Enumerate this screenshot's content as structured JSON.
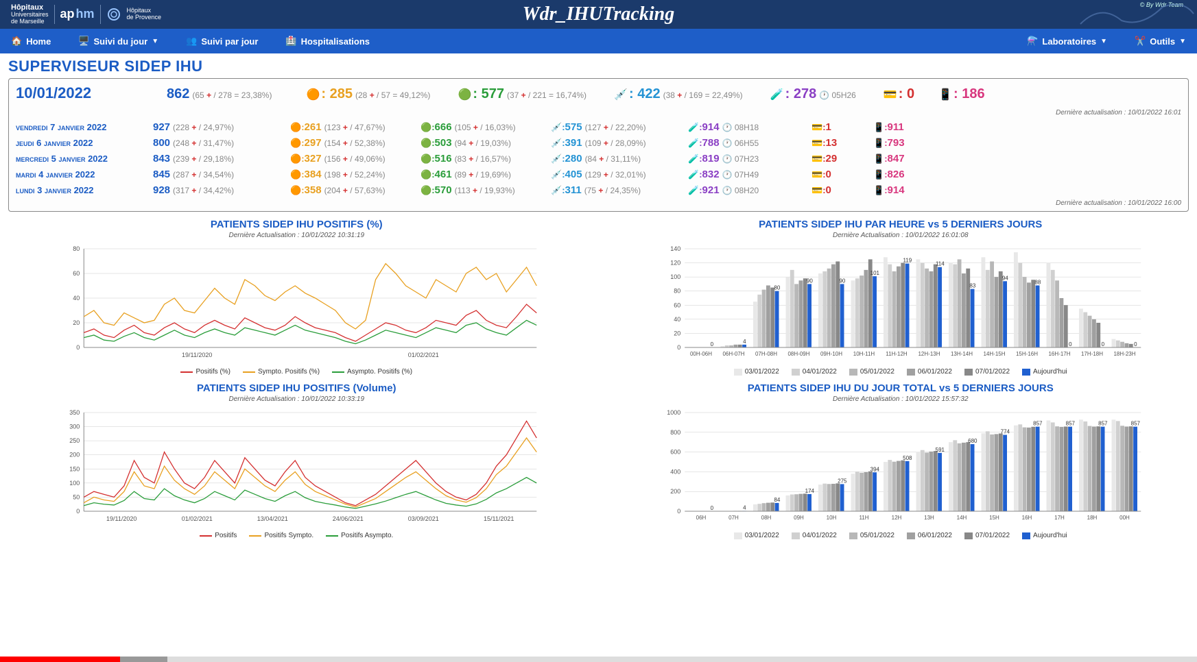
{
  "header": {
    "org1": "Hôpitaux",
    "org1b": "Universitaires",
    "org1c": "de Marseille",
    "org2": "ap",
    "org2b": "hm",
    "org3": "Hôpitaux",
    "org3b": "de Provence",
    "app_title": "Wdr_IHUTracking",
    "by": "© By Wdr Team"
  },
  "nav": {
    "home": "Home",
    "suivi_jour": "Suivi du jour",
    "suivi_par_jour": "Suivi par jour",
    "hospitalisations": "Hospitalisations",
    "laboratoires": "Laboratoires",
    "outils": "Outils"
  },
  "page_title": "SUPERVISEUR SIDEP IHU",
  "today": {
    "date": "10/01/2022",
    "total": "862",
    "total_sub": "(65 + / 278 = 23,38%)",
    "orange": "285",
    "orange_sub": "(28 + / 57 = 49,12%)",
    "green": "577",
    "green_sub": "(37 + / 221 = 16,74%)",
    "cyan": "422",
    "cyan_sub": "(38 + / 169 = 22,49%)",
    "purple": "278",
    "purple_time": "05H26",
    "red": "0",
    "pink": "186"
  },
  "last_update_top": "Dernière actualisation : 10/01/2022 16:01",
  "last_update_bottom": "Dernière actualisation : 10/01/2022 16:00",
  "history": [
    {
      "day": "vendredi 7 janvier 2022",
      "total": "927",
      "total_s": "(228 + / 24,97%)",
      "orange": "261",
      "orange_s": "(123 + / 47,67%)",
      "green": "666",
      "green_s": "(105 + / 16,03%)",
      "cyan": "575",
      "cyan_s": "(127 + / 22,20%)",
      "purple": "914",
      "ptime": "08H18",
      "red": "1",
      "pink": "911"
    },
    {
      "day": "jeudi 6 janvier 2022",
      "total": "800",
      "total_s": "(248 + / 31,47%)",
      "orange": "297",
      "orange_s": "(154 + / 52,38%)",
      "green": "503",
      "green_s": "(94 + / 19,03%)",
      "cyan": "391",
      "cyan_s": "(109 + / 28,09%)",
      "purple": "788",
      "ptime": "06H55",
      "red": "13",
      "pink": "793"
    },
    {
      "day": "mercredi 5 janvier 2022",
      "total": "843",
      "total_s": "(239 + / 29,18%)",
      "orange": "327",
      "orange_s": "(156 + / 49,06%)",
      "green": "516",
      "green_s": "(83 + / 16,57%)",
      "cyan": "280",
      "cyan_s": "(84 + / 31,11%)",
      "purple": "819",
      "ptime": "07H23",
      "red": "29",
      "pink": "847"
    },
    {
      "day": "mardi 4 janvier 2022",
      "total": "845",
      "total_s": "(287 + / 34,54%)",
      "orange": "384",
      "orange_s": "(198 + / 52,24%)",
      "green": "461",
      "green_s": "(89 + / 19,69%)",
      "cyan": "405",
      "cyan_s": "(129 + / 32,01%)",
      "purple": "832",
      "ptime": "07H49",
      "red": "0",
      "pink": "826"
    },
    {
      "day": "lundi 3 janvier 2022",
      "total": "928",
      "total_s": "(317 + / 34,42%)",
      "orange": "358",
      "orange_s": "(204 + / 57,63%)",
      "green": "570",
      "green_s": "(113 + / 19,93%)",
      "cyan": "311",
      "cyan_s": "(75 + / 24,35%)",
      "purple": "921",
      "ptime": "08H20",
      "red": "0",
      "pink": "914"
    }
  ],
  "charts": {
    "pct": {
      "title": "PATIENTS SIDEP IHU POSITIFS (%)",
      "sub": "Dernière Actualisation : 10/01/2022 10:31:19",
      "ylim": [
        0,
        80
      ],
      "yticks": [
        0,
        20,
        40,
        60,
        80
      ],
      "xticks": [
        "19/11/2020",
        "01/02/2021"
      ],
      "colors": {
        "positifs": "#d43030",
        "sympto": "#e8a020",
        "asympto": "#2a9d3a"
      },
      "legend": [
        "Positifs (%)",
        "Sympto. Positifs (%)",
        "Asympto. Positifs (%)"
      ],
      "series": {
        "positifs": [
          12,
          15,
          10,
          8,
          14,
          18,
          12,
          10,
          16,
          20,
          15,
          12,
          18,
          22,
          18,
          15,
          24,
          20,
          16,
          14,
          18,
          25,
          20,
          16,
          14,
          12,
          8,
          5,
          10,
          15,
          20,
          18,
          14,
          12,
          16,
          22,
          20,
          18,
          26,
          30,
          22,
          18,
          16,
          25,
          35,
          28
        ],
        "sympto": [
          25,
          30,
          20,
          18,
          28,
          24,
          20,
          22,
          35,
          40,
          30,
          28,
          38,
          48,
          40,
          35,
          55,
          50,
          42,
          38,
          45,
          50,
          44,
          40,
          35,
          30,
          20,
          15,
          22,
          55,
          68,
          60,
          50,
          45,
          40,
          55,
          50,
          45,
          60,
          65,
          55,
          60,
          45,
          55,
          65,
          50
        ],
        "asympto": [
          8,
          10,
          6,
          5,
          9,
          12,
          8,
          6,
          10,
          14,
          10,
          8,
          12,
          15,
          12,
          10,
          16,
          14,
          12,
          10,
          14,
          18,
          14,
          12,
          10,
          8,
          5,
          3,
          6,
          10,
          14,
          12,
          10,
          8,
          12,
          16,
          14,
          12,
          18,
          20,
          15,
          12,
          10,
          16,
          22,
          18
        ]
      }
    },
    "vol": {
      "title": "PATIENTS SIDEP IHU POSITIFS (Volume)",
      "sub": "Dernière Actualisation : 10/01/2022 10:33:19",
      "ylim": [
        0,
        350
      ],
      "yticks": [
        0,
        50,
        100,
        150,
        200,
        250,
        300,
        350
      ],
      "xticks": [
        "19/11/2020",
        "01/02/2021",
        "13/04/2021",
        "24/06/2021",
        "03/09/2021",
        "15/11/2021"
      ],
      "colors": {
        "positifs": "#d43030",
        "sympto": "#e8a020",
        "asympto": "#2a9d3a"
      },
      "legend": [
        "Positifs",
        "Positifs Sympto.",
        "Positifs Asympto."
      ],
      "series": {
        "positifs": [
          50,
          70,
          60,
          50,
          90,
          180,
          120,
          100,
          210,
          150,
          100,
          80,
          120,
          180,
          140,
          100,
          190,
          150,
          110,
          90,
          140,
          180,
          120,
          90,
          70,
          50,
          30,
          20,
          40,
          60,
          90,
          120,
          150,
          180,
          140,
          100,
          70,
          50,
          40,
          60,
          100,
          160,
          200,
          260,
          320,
          260
        ],
        "sympto": [
          30,
          50,
          40,
          35,
          70,
          140,
          90,
          80,
          160,
          110,
          80,
          60,
          90,
          140,
          110,
          80,
          150,
          120,
          90,
          70,
          110,
          140,
          95,
          70,
          55,
          40,
          25,
          15,
          30,
          45,
          70,
          95,
          120,
          140,
          110,
          80,
          55,
          40,
          32,
          48,
          80,
          130,
          160,
          210,
          260,
          210
        ],
        "asympto": [
          20,
          30,
          25,
          22,
          38,
          70,
          45,
          40,
          80,
          55,
          40,
          30,
          45,
          70,
          55,
          40,
          75,
          60,
          45,
          35,
          55,
          70,
          48,
          35,
          28,
          22,
          15,
          10,
          18,
          26,
          36,
          48,
          60,
          70,
          55,
          40,
          28,
          22,
          18,
          26,
          42,
          65,
          80,
          100,
          120,
          100
        ]
      }
    },
    "hourly": {
      "title": "PATIENTS SIDEP IHU PAR HEURE vs 5 DERNIERS JOURS",
      "sub": "Dernière Actualisation : 10/01/2022 16:01:08",
      "ylim": [
        0,
        140
      ],
      "yticks": [
        0,
        20,
        40,
        60,
        80,
        100,
        120,
        140
      ],
      "categories": [
        "00H-06H",
        "06H-07H",
        "07H-08H",
        "08H-09H",
        "09H-10H",
        "10H-11H",
        "11H-12H",
        "12H-13H",
        "13H-14H",
        "14H-15H",
        "15H-16H",
        "16H-17H",
        "17H-18H",
        "18H-23H"
      ],
      "legend": [
        "03/01/2022",
        "04/01/2022",
        "05/01/2022",
        "06/01/2022",
        "07/01/2022",
        "Aujourd'hui"
      ],
      "colors": [
        "#e8e8e8",
        "#d0d0d0",
        "#b8b8b8",
        "#a0a0a0",
        "#888888",
        "#2060d0"
      ],
      "today_labels": [
        0,
        4,
        80,
        90,
        90,
        101,
        119,
        114,
        83,
        94,
        88,
        0,
        0,
        0
      ],
      "series": [
        [
          0,
          2,
          65,
          100,
          105,
          95,
          128,
          125,
          120,
          128,
          135,
          120,
          55,
          12
        ],
        [
          0,
          3,
          75,
          110,
          108,
          98,
          118,
          120,
          118,
          110,
          120,
          110,
          50,
          10
        ],
        [
          0,
          3,
          82,
          90,
          112,
          102,
          108,
          112,
          125,
          122,
          100,
          95,
          45,
          8
        ],
        [
          0,
          4,
          88,
          95,
          118,
          110,
          115,
          108,
          105,
          100,
          92,
          70,
          40,
          6
        ],
        [
          0,
          4,
          85,
          98,
          122,
          125,
          120,
          118,
          112,
          108,
          96,
          60,
          35,
          5
        ],
        [
          0,
          4,
          80,
          90,
          90,
          101,
          119,
          114,
          83,
          94,
          88,
          0,
          0,
          0
        ]
      ]
    },
    "daily_total": {
      "title": "PATIENTS SIDEP IHU DU JOUR TOTAL vs 5 DERNIERS JOURS",
      "sub": "Dernière Actualisation : 10/01/2022 15:57:32",
      "ylim": [
        0,
        1000
      ],
      "yticks": [
        0,
        200,
        400,
        600,
        800,
        1000
      ],
      "categories": [
        "06H",
        "07H",
        "08H",
        "09H",
        "10H",
        "11H",
        "12H",
        "13H",
        "14H",
        "15H",
        "16H",
        "17H",
        "18H",
        "00H"
      ],
      "legend": [
        "03/01/2022",
        "04/01/2022",
        "05/01/2022",
        "06/01/2022",
        "07/01/2022",
        "Aujourd'hui"
      ],
      "colors": [
        "#e8e8e8",
        "#d0d0d0",
        "#b8b8b8",
        "#a0a0a0",
        "#888888",
        "#2060d0"
      ],
      "today_labels": [
        0,
        4,
        84,
        174,
        275,
        394,
        508,
        591,
        680,
        774,
        857,
        857,
        857,
        857
      ],
      "series": [
        [
          0,
          2,
          70,
          160,
          270,
          380,
          500,
          600,
          700,
          790,
          870,
          920,
          928,
          928
        ],
        [
          0,
          3,
          75,
          170,
          280,
          400,
          520,
          620,
          720,
          810,
          880,
          900,
          910,
          914
        ],
        [
          0,
          3,
          82,
          172,
          276,
          390,
          502,
          594,
          688,
          778,
          850,
          860,
          864,
          866
        ],
        [
          0,
          4,
          86,
          176,
          278,
          396,
          510,
          605,
          695,
          782,
          848,
          855,
          858,
          858
        ],
        [
          0,
          4,
          88,
          178,
          282,
          404,
          516,
          610,
          700,
          788,
          856,
          858,
          860,
          860
        ],
        [
          0,
          4,
          84,
          174,
          275,
          394,
          508,
          591,
          680,
          774,
          857,
          857,
          857,
          857
        ]
      ]
    }
  }
}
